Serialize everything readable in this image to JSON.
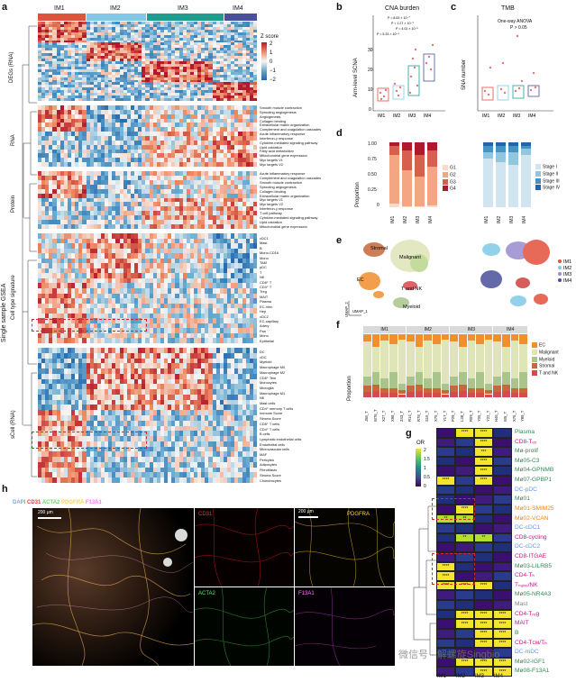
{
  "panel_labels": [
    "a",
    "b",
    "c",
    "d",
    "e",
    "f",
    "g",
    "h"
  ],
  "panel_a": {
    "groups": [
      "IM1",
      "IM2",
      "IM3",
      "IM4"
    ],
    "group_colors": [
      "#e2513a",
      "#7fc9e6",
      "#1c9e8e",
      "#4a4f9c"
    ],
    "row_block_labels": [
      "DEGs (RNA)",
      "RNA",
      "Protein",
      "Cell type signature",
      "sCell (RNA)"
    ],
    "side_label": "Single sample GSEA",
    "zscore_title": "Z score",
    "zscore_ticks": [
      "2",
      "1",
      "0",
      "−1",
      "−2"
    ],
    "rna_terms": [
      "Smooth muscle contraction",
      "Sprouting angiogenesis",
      "Angiogenesis",
      "Collagen binding",
      "Extracellular matrix organization",
      "Complement and coagulation cascades",
      "Acute inflammatory response",
      "Interferon-γ response",
      "Cytokine-mediated signaling pathway",
      "Lipid oxidation",
      "Fatty acid metabolism",
      "Mitochondrial gene expression",
      "Myc targets V1",
      "Myc targets V2"
    ],
    "protein_terms": [
      "Acute inflammatory response",
      "Complement and coagulation cascades",
      "Smooth muscle contraction",
      "Sprouting angiogenesis",
      "Collagen binding",
      "Extracellular matrix organization",
      "Myc targets V1",
      "Myc targets V2",
      "Interferon-γ response",
      "T cell pathway",
      "Cytokine-mediated signaling pathway",
      "Lipid oxidation",
      "Mitochondrial gene expression"
    ],
    "celltype_terms": [
      "cDC1",
      "Mast",
      "B",
      "Mono-CD16",
      "Mono",
      "TAM",
      "pDC",
      "T",
      "NK",
      "CD8⁺ T",
      "CD4⁺ T",
      "Treg",
      "MAIT",
      "Plasma",
      "EC-Vein",
      "Hep",
      "cDC2",
      "EC-capillary",
      "Artery",
      "Pan",
      "Mono",
      "Epithelial"
    ],
    "scell_terms": [
      "DC",
      "cDC",
      "Myeloid",
      "Macrophage M0",
      "Macrophage M2",
      "CD8⁺ Tem",
      "Monocytes",
      "Microglia",
      "Macrophage M1",
      "NK",
      "Mast cells",
      "CD4⁺ memory T cells",
      "Immune Score",
      "Stroma Score",
      "CD8⁺ T cells",
      "CD4⁺ T cells",
      "B cells",
      "Lymphatic endothelial cells",
      "Endothelial cells",
      "Microvascular cells",
      "MAF",
      "Pericytes",
      "Adipocytes",
      "Fibroblasts",
      "Stroma Score",
      "Chondrocytes"
    ]
  },
  "panel_b": {
    "title": "CNA burden",
    "ylabel": "Arm-level SCNA",
    "pvalues": [
      "P = 8.63 × 10⁻⁷",
      "P = 1.27 × 10⁻³",
      "P = 4.02 × 10⁻⁵",
      "P = 5.33 × 10⁻⁴"
    ]
  },
  "panel_c": {
    "title": "TMB",
    "ylabel": "SNA number",
    "test": "One-way ANOVA",
    "p": "P > 0.05"
  },
  "panel_d": {
    "ylabel": "Proportion",
    "yticks": [
      "1.00",
      "0.75",
      "0.50",
      "0.25",
      "0"
    ],
    "grade_legend": [
      "G1",
      "G2",
      "G3",
      "G4"
    ],
    "grade_colors": [
      "#fbd9c9",
      "#f4a582",
      "#d6604d",
      "#b2182b"
    ],
    "stage_legend": [
      "Stage I",
      "Stage II",
      "Stage III",
      "Stage IV"
    ],
    "stage_colors": [
      "#d1e5f0",
      "#92c5de",
      "#4393c3",
      "#2166ac"
    ]
  },
  "panel_e": {
    "clusters": [
      "Stromal",
      "Malignant",
      "EC",
      "T and NK",
      "Myeloid"
    ],
    "axis_x": "UMAP_1",
    "axis_y": "UMAP_2",
    "legend": [
      "IM1",
      "IM2",
      "IM3",
      "IM4"
    ]
  },
  "panel_f": {
    "ylabel": "Proportion",
    "groups": [
      "IM1",
      "IM2",
      "IM3",
      "IM4"
    ],
    "legend": [
      "EC",
      "Malignant",
      "Myeloid",
      "Stromal",
      "T and NK"
    ],
    "legend_colors": [
      "#f28e2b",
      "#dfe5b8",
      "#a9c48c",
      "#c7673a",
      "#d6494d"
    ],
    "samples": [
      "J58_T",
      "W76_T",
      "X27_T",
      "X98_T",
      "Z43_T",
      "R14_T",
      "R78_T",
      "S16_T",
      "X75_T",
      "Y17_T",
      "P29_T",
      "L28_T",
      "R09_T",
      "Y05_T",
      "Y22_T",
      "H46_T",
      "W5_T",
      "X76_T",
      "Y89_T"
    ]
  },
  "panel_g": {
    "colorbar_title": "OR",
    "colorbar_ticks": [
      "2",
      "1.5",
      "1",
      "0.5",
      "0"
    ],
    "columns": [
      "IM1",
      "IM2",
      "IM3",
      "IM4"
    ],
    "rows": [
      "Plasma",
      "CD8-Tₑₓ",
      "Mø-prolif",
      "Mø05-C3",
      "Mø04-GPNMB",
      "Mø07-GPBP1",
      "DC-pDC",
      "Mø01",
      "Mø01-SMIM25",
      "Mø02-VCAN",
      "DC-cDC1",
      "CD8-cycling",
      "DC-cDC2",
      "CD8-ITGAE",
      "Mø03-LILRB5",
      "CD4-Tₕ",
      "Tₙₐᵢᵥₑ/NK",
      "Mø05-NR4A3",
      "Mast",
      "CD4-Tᵣₑg",
      "MAIT",
      "B",
      "CD4-Tᴄᴍ/Tₕ",
      "DC-mDC",
      "Mø02-IGF1",
      "Mø08-F13A1"
    ],
    "row_colors": [
      "#2e8b57",
      "#c71585",
      "#2e8b57",
      "#2e8b57",
      "#2e8b57",
      "#2e8b57",
      "#6495ed",
      "#2e8b57",
      "#ff7f0e",
      "#ff7f0e",
      "#6495ed",
      "#c71585",
      "#6495ed",
      "#c71585",
      "#2e8b57",
      "#c71585",
      "#c71585",
      "#2e8b57",
      "#808080",
      "#c71585",
      "#c71585",
      "#228b22",
      "#c71585",
      "#6495ed",
      "#2e8b57",
      "#2e8b57"
    ],
    "stars": [
      [
        "",
        "****",
        "****",
        ""
      ],
      [
        "",
        "",
        "****",
        ""
      ],
      [
        "",
        "",
        "***",
        ""
      ],
      [
        "",
        "",
        "****",
        ""
      ],
      [
        "",
        "",
        "****",
        ""
      ],
      [
        "****",
        "",
        "****",
        ""
      ],
      [
        "",
        "",
        "",
        ""
      ],
      [
        "",
        "",
        "",
        ""
      ],
      [
        "",
        "****",
        "",
        ""
      ],
      [
        "**",
        "**",
        "",
        ""
      ],
      [
        "",
        "",
        "",
        ""
      ],
      [
        "",
        "**",
        "**",
        ""
      ],
      [
        "",
        "",
        "",
        ""
      ],
      [
        "",
        "",
        "",
        ""
      ],
      [
        "****",
        "",
        "",
        ""
      ],
      [
        "****",
        "",
        "",
        ""
      ],
      [
        "****",
        "****",
        "****",
        ""
      ],
      [
        "",
        "",
        "",
        ""
      ],
      [
        "",
        "",
        "",
        ""
      ],
      [
        "",
        "****",
        "****",
        "****"
      ],
      [
        "",
        "****",
        "****",
        "****"
      ],
      [
        "",
        "",
        "****",
        "****"
      ],
      [
        "",
        "",
        "****",
        "****"
      ],
      [
        "",
        "",
        "",
        ""
      ],
      [
        "",
        "****",
        "****",
        "****"
      ],
      [
        "",
        "",
        "****",
        "****"
      ]
    ]
  },
  "panel_h": {
    "channels": [
      "DAPI",
      "CD31",
      "ACTA2",
      "PDGFRA",
      "F13A1"
    ],
    "channel_colors": [
      "#6fa8ff",
      "#ff3333",
      "#66dd66",
      "#ffd24d",
      "#ff77ff"
    ],
    "scale_main": "200 μm",
    "scale_small": "200 μm"
  },
  "watermark": "微信号 · 解螺旋Singbio"
}
